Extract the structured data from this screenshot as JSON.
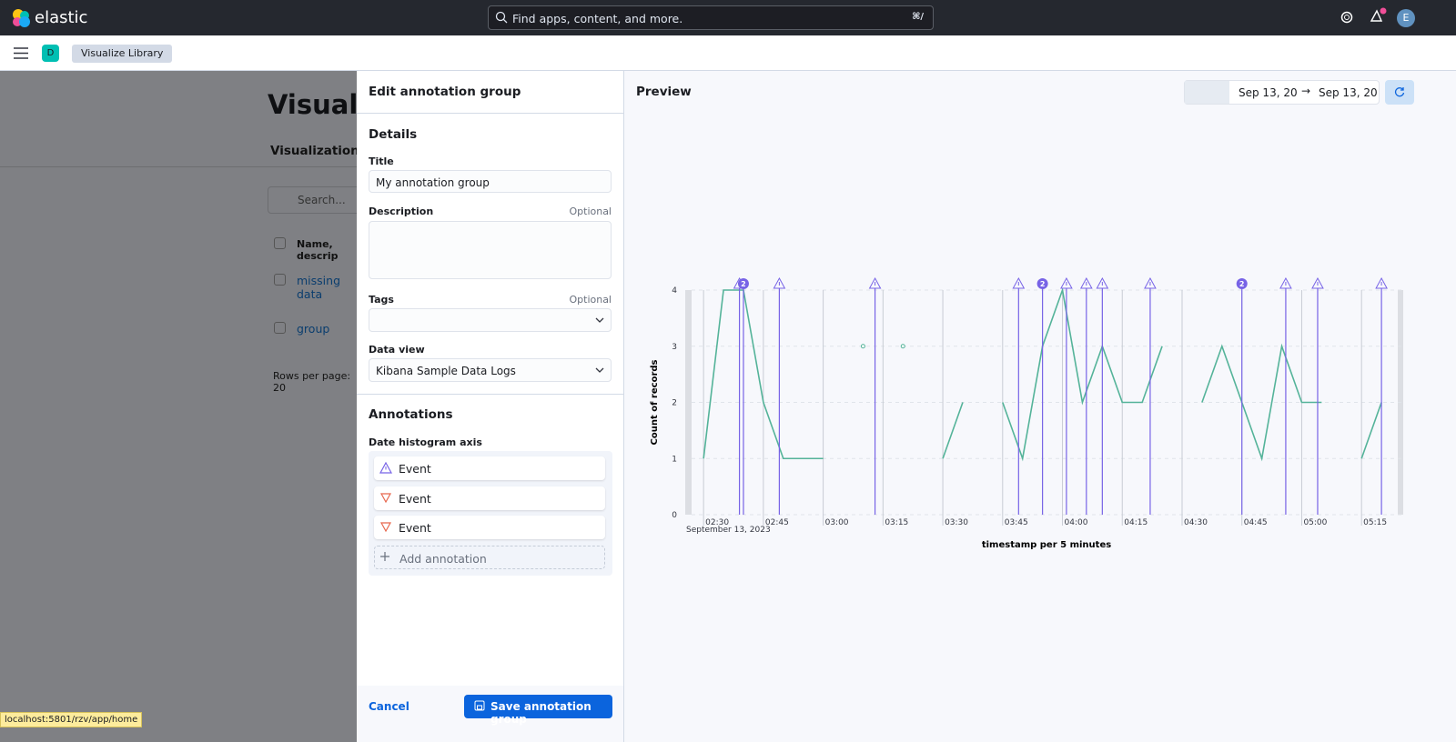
{
  "header": {
    "logo": "elastic",
    "search_placeholder": "Find apps, content, and more.",
    "search_shortcut": "⌘/",
    "avatar": "E"
  },
  "nav": {
    "space": "D",
    "breadcrumb": "Visualize Library"
  },
  "background_page": {
    "title": "Visualiz",
    "tab": "Visualizations",
    "search": "Search...",
    "column": "Name, descrip",
    "rows": [
      "missing data",
      "group"
    ],
    "pagination": "Rows per page: 20"
  },
  "flyout": {
    "title": "Edit annotation group",
    "details_heading": "Details",
    "title_label": "Title",
    "title_value": "My annotation group",
    "description_label": "Description",
    "description_hint": "Optional",
    "tags_label": "Tags",
    "tags_hint": "Optional",
    "data_view_label": "Data view",
    "data_view_value": "Kibana Sample Data Logs",
    "annotations_heading": "Annotations",
    "axis_label": "Date histogram axis",
    "annotations": [
      "Event",
      "Event",
      "Event"
    ],
    "add_annotation": "Add annotation",
    "cancel": "Cancel",
    "save": "Save annotation group"
  },
  "preview": {
    "title": "Preview",
    "start": "Sep 13, 20",
    "end": "Sep 13, 20"
  },
  "chart_data": {
    "type": "line",
    "color": "#54b399",
    "annotation_color": "#7763e6",
    "xlabel": "timestamp per 5 minutes",
    "x_sublabel": "September 13, 2023",
    "ylabel": "Count of records",
    "x": [
      "02:30",
      "02:35",
      "02:40",
      "02:45",
      "02:50",
      "02:55",
      "03:00",
      "03:05",
      "03:10",
      "03:15",
      "03:20",
      "03:25",
      "03:30",
      "03:35",
      "03:40",
      "03:45",
      "03:50",
      "03:55",
      "04:00",
      "04:05",
      "04:10",
      "04:15",
      "04:20",
      "04:25",
      "04:30",
      "04:35",
      "04:40",
      "04:45",
      "04:50",
      "04:55",
      "05:00",
      "05:05",
      "05:10",
      "05:15",
      "05:20"
    ],
    "values": [
      1,
      4,
      4,
      2,
      1,
      1,
      1,
      null,
      3,
      null,
      3,
      null,
      1,
      2,
      null,
      2,
      1,
      3,
      4,
      2,
      3,
      2,
      2,
      3,
      null,
      2,
      3,
      2,
      1,
      3,
      2,
      2,
      null,
      1,
      2
    ],
    "xlim": [
      "02:27",
      "05:25"
    ],
    "xticks": [
      "02:30",
      "02:45",
      "03:00",
      "03:15",
      "03:30",
      "03:45",
      "04:00",
      "04:15",
      "04:30",
      "04:45",
      "05:00",
      "05:15"
    ],
    "ylim": [
      0,
      4
    ],
    "yticks": [
      0,
      1,
      2,
      3,
      4
    ],
    "grid": true,
    "annotations": [
      {
        "x": "02:39",
        "marker": "warning"
      },
      {
        "x": "02:40",
        "count": 2
      },
      {
        "x": "02:49",
        "marker": "warning"
      },
      {
        "x": "03:13",
        "marker": "warning"
      },
      {
        "x": "03:49",
        "marker": "warning"
      },
      {
        "x": "03:55",
        "count": 2
      },
      {
        "x": "04:01",
        "marker": "warning"
      },
      {
        "x": "04:06",
        "marker": "warning"
      },
      {
        "x": "04:10",
        "marker": "warning"
      },
      {
        "x": "04:22",
        "marker": "warning"
      },
      {
        "x": "04:45",
        "count": 2
      },
      {
        "x": "04:56",
        "marker": "warning"
      },
      {
        "x": "05:04",
        "marker": "warning"
      },
      {
        "x": "05:20",
        "marker": "warning"
      }
    ]
  },
  "status_bar": "localhost:5801/rzv/app/home"
}
